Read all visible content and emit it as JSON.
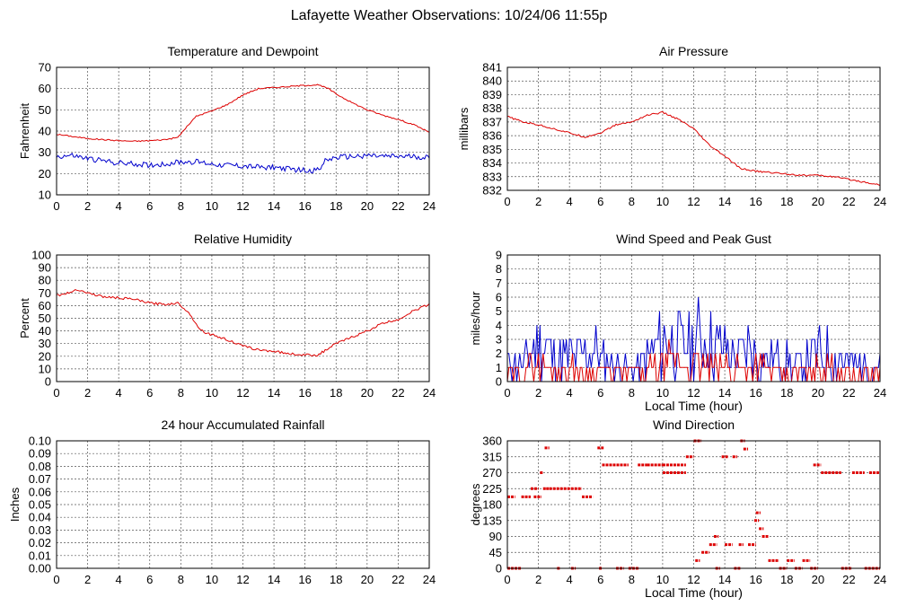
{
  "page": {
    "title": "Lafayette Weather Observations: 10/24/06 11:55p"
  },
  "colors": {
    "red": "#dd0000",
    "blue": "#0000cc",
    "grid": "#555555",
    "axis": "#000000"
  },
  "chart_data": [
    {
      "id": "temp",
      "type": "line",
      "title": "Temperature and Dewpoint",
      "xlabel": "",
      "ylabel": "Fahrenheit",
      "xlim": [
        0,
        24
      ],
      "ylim": [
        10,
        70
      ],
      "xticks": [
        0,
        2,
        4,
        6,
        8,
        10,
        12,
        14,
        16,
        18,
        20,
        22,
        24
      ],
      "yticks": [
        10,
        20,
        30,
        40,
        50,
        60,
        70
      ],
      "grid": true,
      "series": [
        {
          "color": "#dd0000",
          "noise": 0.3,
          "points": [
            [
              0,
              38.5
            ],
            [
              1,
              37.5
            ],
            [
              2,
              36.5
            ],
            [
              3,
              36
            ],
            [
              4,
              35.5
            ],
            [
              5,
              35.2
            ],
            [
              6,
              35.5
            ],
            [
              7,
              36
            ],
            [
              7.8,
              37
            ],
            [
              8.5,
              43
            ],
            [
              9,
              47
            ],
            [
              10,
              49.5
            ],
            [
              11,
              52.5
            ],
            [
              12,
              57
            ],
            [
              13,
              60
            ],
            [
              14,
              60.5
            ],
            [
              15,
              61
            ],
            [
              16,
              61.5
            ],
            [
              16.8,
              61.8
            ],
            [
              17.5,
              60
            ],
            [
              18,
              57.5
            ],
            [
              19,
              53.5
            ],
            [
              20,
              50
            ],
            [
              21,
              47.5
            ],
            [
              22,
              45.5
            ],
            [
              23,
              43
            ],
            [
              24,
              39.5
            ]
          ]
        },
        {
          "color": "#0000cc",
          "noise": 1.3,
          "points": [
            [
              0,
              28
            ],
            [
              1,
              28.5
            ],
            [
              2,
              27
            ],
            [
              3,
              26
            ],
            [
              4,
              25
            ],
            [
              5,
              24.5
            ],
            [
              6,
              24
            ],
            [
              7,
              24.5
            ],
            [
              8,
              25.5
            ],
            [
              9,
              25.5
            ],
            [
              10,
              24.5
            ],
            [
              11,
              24
            ],
            [
              12,
              23.5
            ],
            [
              13,
              23
            ],
            [
              14,
              23
            ],
            [
              15,
              22
            ],
            [
              16,
              21.5
            ],
            [
              16.8,
              21.5
            ],
            [
              17.3,
              26
            ],
            [
              18,
              27.5
            ],
            [
              19,
              28
            ],
            [
              20,
              28.5
            ],
            [
              21,
              28
            ],
            [
              22,
              28
            ],
            [
              23,
              28
            ],
            [
              24,
              27.5
            ]
          ]
        }
      ]
    },
    {
      "id": "pressure",
      "type": "line",
      "title": "Air Pressure",
      "xlabel": "",
      "ylabel": "millibars",
      "xlim": [
        0,
        24
      ],
      "ylim": [
        832,
        841
      ],
      "xticks": [
        0,
        2,
        4,
        6,
        8,
        10,
        12,
        14,
        16,
        18,
        20,
        22,
        24
      ],
      "yticks": [
        832,
        833,
        834,
        835,
        836,
        837,
        838,
        839,
        840,
        841
      ],
      "grid": true,
      "series": [
        {
          "color": "#dd0000",
          "noise": 0.06,
          "points": [
            [
              0,
              837.4
            ],
            [
              1,
              837
            ],
            [
              2,
              836.8
            ],
            [
              3,
              836.5
            ],
            [
              4,
              836.2
            ],
            [
              5,
              835.9
            ],
            [
              6,
              836.2
            ],
            [
              7,
              836.8
            ],
            [
              8,
              837
            ],
            [
              9,
              837.5
            ],
            [
              10,
              837.7
            ],
            [
              11,
              837.2
            ],
            [
              12,
              836.5
            ],
            [
              13,
              835.3
            ],
            [
              14,
              834.5
            ],
            [
              15,
              833.6
            ],
            [
              16,
              833.4
            ],
            [
              17,
              833.3
            ],
            [
              18,
              833.2
            ],
            [
              19,
              833.1
            ],
            [
              20,
              833.1
            ],
            [
              21,
              833
            ],
            [
              22,
              832.8
            ],
            [
              23,
              832.6
            ],
            [
              24,
              832.4
            ]
          ]
        }
      ]
    },
    {
      "id": "humidity",
      "type": "line",
      "title": "Relative Humidity",
      "xlabel": "",
      "ylabel": "Percent",
      "xlim": [
        0,
        24
      ],
      "ylim": [
        0,
        100
      ],
      "xticks": [
        0,
        2,
        4,
        6,
        8,
        10,
        12,
        14,
        16,
        18,
        20,
        22,
        24
      ],
      "yticks": [
        0,
        10,
        20,
        30,
        40,
        50,
        60,
        70,
        80,
        90,
        100
      ],
      "grid": true,
      "series": [
        {
          "color": "#dd0000",
          "noise": 0.9,
          "points": [
            [
              0,
              68
            ],
            [
              0.8,
              70
            ],
            [
              1.3,
              73
            ],
            [
              2,
              70
            ],
            [
              3,
              67
            ],
            [
              4,
              66
            ],
            [
              5,
              65
            ],
            [
              6,
              62
            ],
            [
              7,
              61
            ],
            [
              7.8,
              62
            ],
            [
              8.5,
              55
            ],
            [
              9,
              45
            ],
            [
              9.5,
              39
            ],
            [
              10,
              37
            ],
            [
              11,
              33
            ],
            [
              12,
              28
            ],
            [
              13,
              25
            ],
            [
              14,
              24
            ],
            [
              15,
              22
            ],
            [
              16,
              21
            ],
            [
              16.8,
              21
            ],
            [
              17.5,
              26
            ],
            [
              18,
              30
            ],
            [
              19,
              35
            ],
            [
              20,
              40
            ],
            [
              21,
              46
            ],
            [
              22,
              49
            ],
            [
              23,
              56
            ],
            [
              24,
              61
            ]
          ]
        }
      ]
    },
    {
      "id": "wind",
      "type": "line",
      "title": "Wind Speed and Peak Gust",
      "xlabel": "Local Time (hour)",
      "ylabel": "miles/hour",
      "xlim": [
        0,
        24
      ],
      "ylim": [
        0,
        9
      ],
      "xticks": [
        0,
        2,
        4,
        6,
        8,
        10,
        12,
        14,
        16,
        18,
        20,
        22,
        24
      ],
      "yticks": [
        0,
        1,
        2,
        3,
        4,
        5,
        6,
        7,
        8,
        9
      ],
      "grid": true,
      "series": [
        {
          "color": "#0000cc",
          "seed": 11,
          "step": 0.1,
          "envelope": [
            [
              0,
              2
            ],
            [
              1,
              1.5
            ],
            [
              1.7,
              5
            ],
            [
              2.5,
              4.5
            ],
            [
              3,
              2.5
            ],
            [
              4,
              3
            ],
            [
              5,
              3
            ],
            [
              5.5,
              4
            ],
            [
              6,
              2.5
            ],
            [
              7,
              2
            ],
            [
              8,
              1.5
            ],
            [
              9,
              2.5
            ],
            [
              10,
              5.5
            ],
            [
              11,
              4.5
            ],
            [
              12,
              5
            ],
            [
              12.7,
              6
            ],
            [
              13.5,
              4.5
            ],
            [
              14,
              3.5
            ],
            [
              15,
              3
            ],
            [
              15.5,
              4.5
            ],
            [
              16,
              3
            ],
            [
              17,
              2.5
            ],
            [
              18,
              2
            ],
            [
              19,
              1.5
            ],
            [
              20,
              3.5
            ],
            [
              21,
              3
            ],
            [
              22,
              2
            ],
            [
              23,
              1.5
            ],
            [
              24,
              1.5
            ]
          ]
        },
        {
          "color": "#dd0000",
          "seed": 29,
          "step": 0.1,
          "envelope": [
            [
              0,
              0.5
            ],
            [
              1.5,
              1.5
            ],
            [
              2.5,
              1.5
            ],
            [
              3.5,
              1
            ],
            [
              5,
              1
            ],
            [
              6,
              0.8
            ],
            [
              8,
              0.5
            ],
            [
              9,
              1
            ],
            [
              10,
              2
            ],
            [
              11,
              2
            ],
            [
              12,
              2
            ],
            [
              13,
              1.5
            ],
            [
              14,
              1.5
            ],
            [
              15,
              1.5
            ],
            [
              16,
              1.5
            ],
            [
              17,
              1
            ],
            [
              18,
              0.5
            ],
            [
              19,
              0.5
            ],
            [
              20,
              1.5
            ],
            [
              21,
              1
            ],
            [
              22,
              0.5
            ],
            [
              24,
              0.3
            ]
          ]
        }
      ]
    },
    {
      "id": "rain",
      "type": "line",
      "title": "24 hour Accumulated Rainfall",
      "xlabel": "",
      "ylabel": "Inches",
      "xlim": [
        0,
        24
      ],
      "ylim": [
        0,
        0.1
      ],
      "xticks": [
        0,
        2,
        4,
        6,
        8,
        10,
        12,
        14,
        16,
        18,
        20,
        22,
        24
      ],
      "yticks": [
        "0.00",
        "0.01",
        "0.02",
        "0.03",
        "0.04",
        "0.05",
        "0.06",
        "0.07",
        "0.08",
        "0.09",
        "0.10"
      ],
      "grid": true,
      "series": [
        {
          "color": "#dd0000",
          "points": [
            [
              0,
              0
            ],
            [
              24,
              0
            ]
          ]
        }
      ]
    },
    {
      "id": "direction",
      "type": "scatter",
      "title": "Wind Direction",
      "xlabel": "Local Time (hour)",
      "ylabel": "degrees",
      "xlim": [
        0,
        24
      ],
      "ylim": [
        0,
        360
      ],
      "xticks": [
        0,
        2,
        4,
        6,
        8,
        10,
        12,
        14,
        16,
        18,
        20,
        22,
        24
      ],
      "yticks": [
        0,
        45,
        90,
        135,
        180,
        225,
        270,
        315,
        360
      ],
      "grid": true,
      "series": [
        {
          "color": "#dd0000",
          "segments": [
            [
              0,
              0.9,
              0
            ],
            [
              0,
              0.5,
              202
            ],
            [
              0.9,
              1.5,
              202
            ],
            [
              1.5,
              2,
              225
            ],
            [
              1.7,
              2.2,
              202
            ],
            [
              2.1,
              2.3,
              270
            ],
            [
              2.3,
              2.5,
              225
            ],
            [
              2.5,
              2.7,
              225
            ],
            [
              2.4,
              2.7,
              340
            ],
            [
              2.7,
              4.8,
              225
            ],
            [
              3.2,
              3.4,
              0
            ],
            [
              4.1,
              4.4,
              0
            ],
            [
              4.8,
              5.5,
              202
            ],
            [
              5.8,
              6.2,
              340
            ],
            [
              5.9,
              6.1,
              0
            ],
            [
              6.1,
              7.8,
              292
            ],
            [
              7,
              7.5,
              0
            ],
            [
              7.8,
              8.5,
              0
            ],
            [
              8.4,
              9,
              292
            ],
            [
              9,
              10,
              292
            ],
            [
              10,
              11.5,
              292
            ],
            [
              10,
              11.5,
              270
            ],
            [
              11.5,
              12,
              315
            ],
            [
              12,
              12.5,
              360
            ],
            [
              12.1,
              12.4,
              22
            ],
            [
              12.5,
              13,
              45
            ],
            [
              13,
              13.5,
              67
            ],
            [
              13.3,
              13.6,
              90
            ],
            [
              13.4,
              13.7,
              0
            ],
            [
              13.8,
              14.2,
              315
            ],
            [
              14,
              14.5,
              67
            ],
            [
              14.5,
              14.8,
              315
            ],
            [
              14.6,
              15,
              0
            ],
            [
              14.9,
              15.2,
              67
            ],
            [
              15,
              15.3,
              360
            ],
            [
              15.2,
              15.5,
              337
            ],
            [
              15.5,
              16,
              67
            ],
            [
              15.9,
              16.2,
              135
            ],
            [
              16,
              16.3,
              157
            ],
            [
              16.2,
              16.5,
              112
            ],
            [
              16.4,
              16.8,
              90
            ],
            [
              16.8,
              17.5,
              22
            ],
            [
              17.5,
              18,
              0
            ],
            [
              18,
              18.5,
              22
            ],
            [
              18.5,
              19,
              0
            ],
            [
              19,
              19.5,
              22
            ],
            [
              19.5,
              20,
              0
            ],
            [
              19.7,
              20.2,
              292
            ],
            [
              20.2,
              21.5,
              270
            ],
            [
              21.5,
              22.2,
              0
            ],
            [
              22.2,
              23,
              270
            ],
            [
              23,
              24,
              0
            ],
            [
              23.3,
              24,
              270
            ]
          ]
        }
      ]
    }
  ]
}
